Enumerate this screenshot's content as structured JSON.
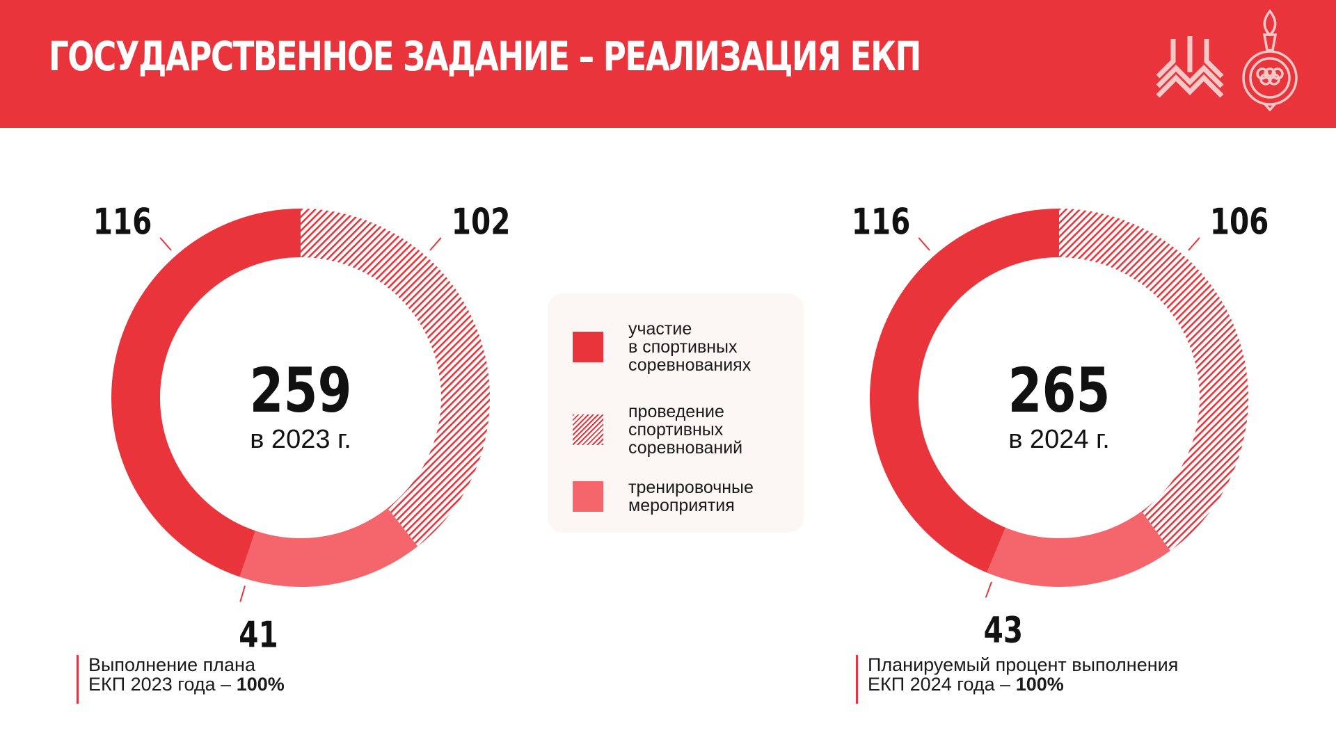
{
  "header": {
    "title": "ГОСУДАРСТВЕННОЕ ЗАДАНИЕ – РЕАЛИЗАЦИЯ ЕКП",
    "background": "#e8343a"
  },
  "colors": {
    "primary": "#e8343a",
    "light": "#f4666b",
    "hatch": "#e8343a"
  },
  "legend": {
    "items": [
      {
        "label": "участие\nв спортивных\nсоревнованиях",
        "style": "solid"
      },
      {
        "label": "проведение\nспортивных\nсоревнований",
        "style": "hatch"
      },
      {
        "label": "тренировочные\nмероприятия",
        "style": "light"
      }
    ]
  },
  "notes": {
    "left_text": "Выполнение плана\nЕКП 2023 года – ",
    "left_value": "100%",
    "right_text": "Планируемый процент выполнения\nЕКП 2024 года – ",
    "right_value": "100%"
  },
  "chart_data": [
    {
      "type": "pie",
      "donut": true,
      "center_value": "259",
      "center_label": "в 2023 г.",
      "categories": [
        "участие в спортивных соревнованиях",
        "проведение спортивных соревнований",
        "тренировочные мероприятия"
      ],
      "values": [
        116,
        102,
        41
      ],
      "value_labels": [
        "116",
        "102",
        "41"
      ]
    },
    {
      "type": "pie",
      "donut": true,
      "center_value": "265",
      "center_label": "в 2024 г.",
      "categories": [
        "участие в спортивных соревнованиях",
        "проведение спортивных соревнований",
        "тренировочные мероприятия"
      ],
      "values": [
        116,
        106,
        43
      ],
      "value_labels": [
        "116",
        "106",
        "43"
      ]
    }
  ]
}
